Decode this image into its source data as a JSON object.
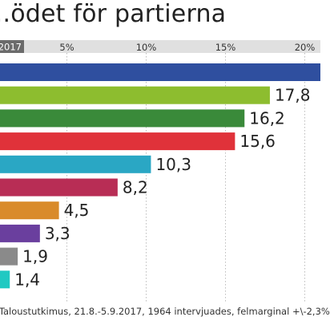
{
  "title": "...ödet för partierna",
  "source": "/Taloustutkimus, 21.8.-5.9.2017, 1964 intervjuades, felmarginal +\\-2,3%",
  "year_badge": "2017",
  "chart_data": {
    "type": "bar",
    "orientation": "horizontal",
    "title": "...ödet för partierna",
    "xlabel": "",
    "ylabel": "",
    "xlim": [
      0,
      21
    ],
    "x_ticks": [
      "5%",
      "10%",
      "15%",
      "20%"
    ],
    "x_tick_values": [
      5,
      10,
      15,
      20
    ],
    "grid": true,
    "value_labels": [
      "",
      "17,8",
      "16,2",
      "15,6",
      "10,3",
      "8,2",
      "4,5",
      "3,3",
      "1,9",
      "1,4"
    ],
    "values": [
      21.5,
      17.8,
      16.2,
      15.6,
      10.3,
      8.2,
      4.5,
      3.3,
      1.9,
      1.4
    ],
    "colors": [
      "#2f4f9f",
      "#8dbd2f",
      "#3a8a3a",
      "#e0323a",
      "#2aa7c4",
      "#b82d55",
      "#d98b2b",
      "#6a3f9e",
      "#8a8a8a",
      "#20c9c2"
    ]
  },
  "colors": {
    "axis_band": "#e0e0e0",
    "badge": "#6b6b6b",
    "grid": "#bdbdbd",
    "text": "#222222"
  }
}
